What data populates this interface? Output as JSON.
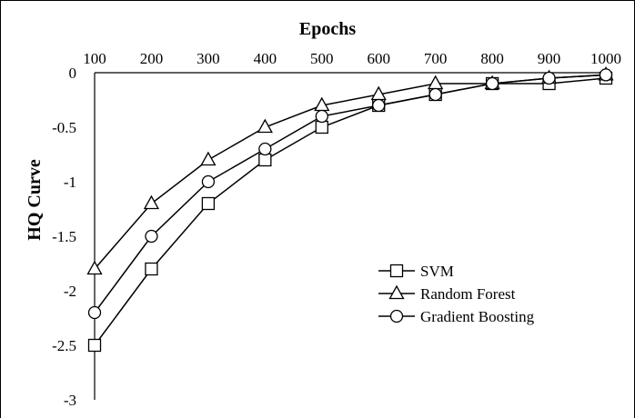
{
  "chart_data": {
    "type": "line",
    "x": [
      100,
      200,
      300,
      400,
      500,
      600,
      700,
      800,
      900,
      1000
    ],
    "xlabel": "Epochs",
    "ylabel": "HQ Curve",
    "xlim": [
      100,
      1000
    ],
    "ylim": [
      -3,
      0
    ],
    "x_ticks": [
      "100",
      "200",
      "300",
      "400",
      "500",
      "600",
      "700",
      "800",
      "900",
      "1000"
    ],
    "y_ticks": [
      "0",
      "-0.5",
      "-1",
      "-1.5",
      "-2",
      "-2.5",
      "-3"
    ],
    "x_axis_position": "top",
    "grid": false,
    "legend_position": "center-right",
    "series": [
      {
        "name": "SVM",
        "marker": "square",
        "color": "#000000",
        "values": [
          -2.5,
          -1.8,
          -1.2,
          -0.8,
          -0.5,
          -0.3,
          -0.2,
          -0.1,
          -0.1,
          -0.05
        ]
      },
      {
        "name": "Random Forest",
        "marker": "triangle",
        "color": "#000000",
        "values": [
          -1.8,
          -1.2,
          -0.8,
          -0.5,
          -0.3,
          -0.2,
          -0.1,
          -0.1,
          -0.05,
          -0.02
        ]
      },
      {
        "name": "Gradient Boosting",
        "marker": "circle",
        "color": "#000000",
        "values": [
          -2.2,
          -1.5,
          -1.0,
          -0.7,
          -0.4,
          -0.3,
          -0.2,
          -0.1,
          -0.05,
          -0.02
        ]
      }
    ]
  }
}
